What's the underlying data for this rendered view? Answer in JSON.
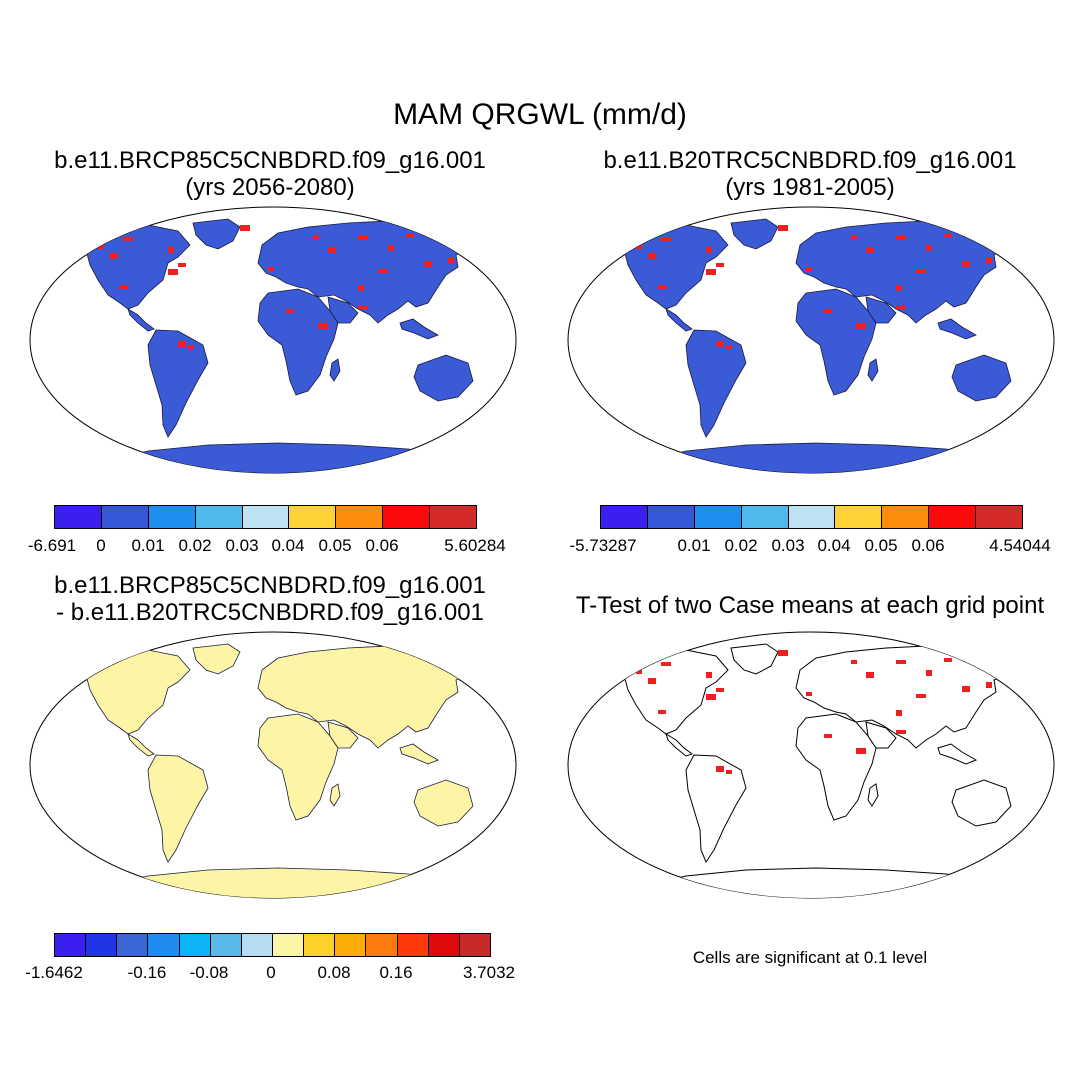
{
  "title": "MAM QRGWL (mm/d)",
  "panels": {
    "p1": {
      "title": "b.e11.BRCP85C5CNBDRD.f09_g16.001",
      "subtitle": "(yrs 2056-2080)"
    },
    "p2": {
      "title": "b.e11.B20TRC5CNBDRD.f09_g16.001",
      "subtitle": "(yrs 1981-2005)"
    },
    "p3": {
      "title": "b.e11.BRCP85C5CNBDRD.f09_g16.001",
      "subtitle": "- b.e11.B20TRC5CNBDRD.f09_g16.001"
    },
    "p4": {
      "title": "T-Test of two Case means at each grid point",
      "note": "Cells are significant at 0.1 level"
    }
  },
  "colorbars": {
    "cb1": {
      "colors": [
        "#3b1ff0",
        "#3557d8",
        "#1e8ff0",
        "#50b9ec",
        "#bde2f2",
        "#fdd234",
        "#fc8c0c",
        "#fc0a0a",
        "#d32a2a"
      ],
      "labels": [
        "-6.691",
        "0",
        "0.01",
        "0.02",
        "0.03",
        "0.04",
        "0.05",
        "0.06",
        "5.60284"
      ]
    },
    "cb2": {
      "colors": [
        "#3b1ff0",
        "#3557d8",
        "#1e8ff0",
        "#50b9ec",
        "#bde2f2",
        "#fdd234",
        "#fc8c0c",
        "#fc0a0a",
        "#d32a2a"
      ],
      "labels": [
        "-5.73287",
        "0.01",
        "0.02",
        "0.03",
        "0.04",
        "0.05",
        "0.06",
        "4.54044"
      ]
    },
    "cb3": {
      "colors": [
        "#3b1ff0",
        "#1f36e6",
        "#3a66d6",
        "#208cf0",
        "#0ab4f5",
        "#5ab9e8",
        "#b6dcf2",
        "#fdf5a6",
        "#fdd02a",
        "#fdac0a",
        "#fc7a0e",
        "#fc3a0a",
        "#e00a0a",
        "#c82a2a"
      ],
      "labels": [
        "-1.6462",
        "-0.16",
        "-0.08",
        "0",
        "0.08",
        "0.16",
        "3.7032"
      ]
    }
  },
  "map_colors": {
    "p1": "#3a5ad6",
    "p2": "#3a5ad6",
    "p3": "#fdf5a6",
    "p4": "#ffffff",
    "hot": "#f02020"
  }
}
